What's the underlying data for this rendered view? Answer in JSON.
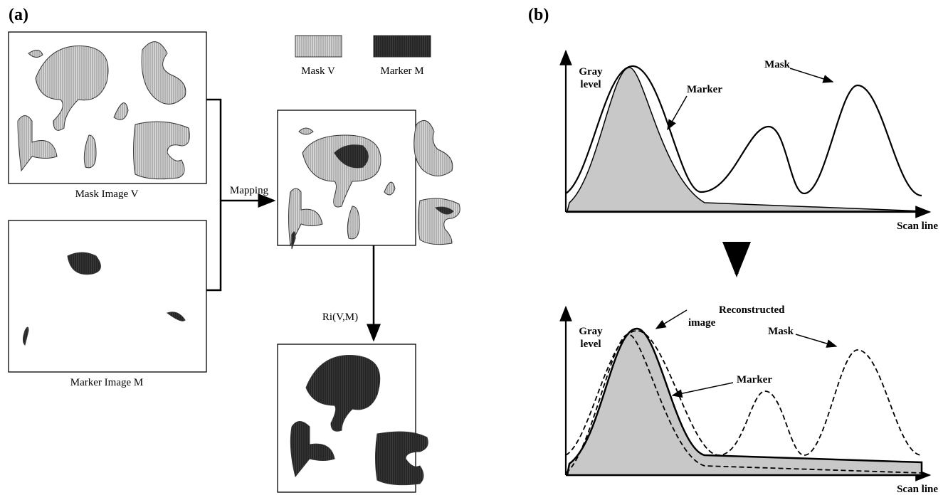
{
  "panel_a": {
    "label": "(a)",
    "legend": [
      "Mask V",
      "Marker  M"
    ],
    "mask_caption": "Mask Image V",
    "marker_caption": "Marker Image M",
    "mapping": "Mapping",
    "operation": "Ri(V,M)"
  },
  "panel_b": {
    "label": "(b)",
    "top": {
      "y_label": [
        "Gray",
        "level"
      ],
      "x_label": "Scan line",
      "marker": "Marker",
      "mask": "Mask"
    },
    "bottom": {
      "y_label": [
        "Gray",
        "level"
      ],
      "x_label": "Scan line",
      "marker": "Marker",
      "mask": "Mask",
      "reconstructed": [
        "Reconstructed",
        "image"
      ]
    }
  }
}
